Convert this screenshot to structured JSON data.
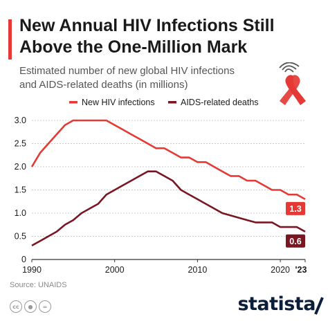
{
  "colors": {
    "accent": "#e53935",
    "new_infections": "#e53935",
    "aids_deaths": "#7a1522",
    "grid": "#cccccc",
    "axis_text": "#1a1a1a",
    "brand": "#0b1e3a"
  },
  "header": {
    "title_line1": "New Annual HIV Infections Still",
    "title_line2": "Above the One-Million Mark"
  },
  "footer": {
    "source": "Source: UNAIDS",
    "brand": "statista",
    "license_icons": [
      "cc-icon",
      "person-attribution-icon",
      "no-derivatives-icon"
    ]
  },
  "chart_data": {
    "type": "line",
    "title": "New Annual HIV Infections Still Above the One-Million Mark",
    "subtitle_line1": "Estimated number of new global HIV infections",
    "subtitle_line2": "and AIDS-related deaths (in millions)",
    "xlabel": "",
    "ylabel": "",
    "ylim": [
      0,
      3.0
    ],
    "xlim": [
      1990,
      2023
    ],
    "yticks": [
      "0",
      "0.5",
      "1.0",
      "1.5",
      "2.0",
      "2.5",
      "3.0"
    ],
    "yticks_values": [
      0,
      0.5,
      1.0,
      1.5,
      2.0,
      2.5,
      3.0
    ],
    "xticks": [
      "1990",
      "2000",
      "2010",
      "2020",
      "'23"
    ],
    "xticks_values": [
      1990,
      2000,
      2010,
      2020,
      2023
    ],
    "grid": true,
    "legend_position": "top",
    "series": [
      {
        "name": "New HIV infections",
        "color": "#e53935",
        "end_label": "1.3",
        "x": [
          1990,
          1991,
          1992,
          1993,
          1994,
          1995,
          1996,
          1997,
          1998,
          1999,
          2000,
          2001,
          2002,
          2003,
          2004,
          2005,
          2006,
          2007,
          2008,
          2009,
          2010,
          2011,
          2012,
          2013,
          2014,
          2015,
          2016,
          2017,
          2018,
          2019,
          2020,
          2021,
          2022,
          2023
        ],
        "values": [
          2.0,
          2.3,
          2.5,
          2.7,
          2.9,
          3.0,
          3.0,
          3.0,
          3.0,
          3.0,
          2.9,
          2.8,
          2.7,
          2.6,
          2.5,
          2.4,
          2.4,
          2.3,
          2.2,
          2.2,
          2.1,
          2.1,
          2.0,
          1.9,
          1.8,
          1.8,
          1.7,
          1.7,
          1.6,
          1.5,
          1.5,
          1.4,
          1.4,
          1.3
        ]
      },
      {
        "name": "AIDS-related deaths",
        "color": "#7a1522",
        "end_label": "0.6",
        "x": [
          1990,
          1991,
          1992,
          1993,
          1994,
          1995,
          1996,
          1997,
          1998,
          1999,
          2000,
          2001,
          2002,
          2003,
          2004,
          2005,
          2006,
          2007,
          2008,
          2009,
          2010,
          2011,
          2012,
          2013,
          2014,
          2015,
          2016,
          2017,
          2018,
          2019,
          2020,
          2021,
          2022,
          2023
        ],
        "values": [
          0.3,
          0.4,
          0.5,
          0.6,
          0.75,
          0.85,
          1.0,
          1.1,
          1.2,
          1.4,
          1.5,
          1.6,
          1.7,
          1.8,
          1.9,
          1.9,
          1.8,
          1.7,
          1.5,
          1.4,
          1.3,
          1.2,
          1.1,
          1.0,
          0.95,
          0.9,
          0.85,
          0.8,
          0.8,
          0.8,
          0.7,
          0.7,
          0.7,
          0.6
        ]
      }
    ]
  }
}
